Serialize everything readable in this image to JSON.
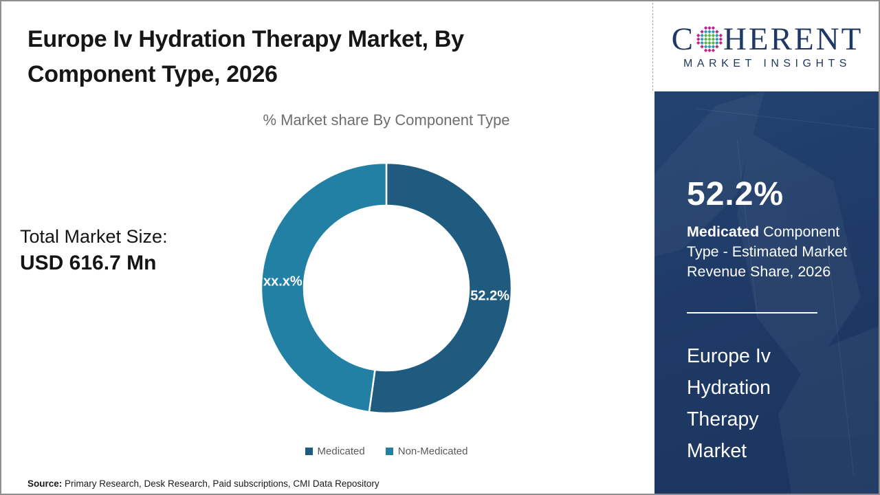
{
  "header": {
    "title": "Europe Iv Hydration Therapy Market, By Component Type, 2026"
  },
  "logo": {
    "brand_first_letter": "C",
    "brand_rest": "HERENT",
    "tagline": "MARKET INSIGHTS",
    "brand_color": "#1f3864",
    "globe_dot_colors": {
      "green": "#5bb54b",
      "teal": "#2e9ab4",
      "magenta": "#c02488"
    }
  },
  "chart_data": {
    "type": "pie",
    "donut": true,
    "title": "% Market share By Component Type",
    "legend_position": "bottom",
    "slices": [
      {
        "name": "Medicated",
        "value": 52.2,
        "label": "52.2%",
        "color": "#1f5b7e"
      },
      {
        "name": "Non-Medicated",
        "value": 47.8,
        "label": "xx.x%",
        "color": "#2180a3"
      }
    ]
  },
  "left_panel": {
    "total_label": "Total Market Size:",
    "total_value": "USD 616.7 Mn"
  },
  "sidebar": {
    "bg_color": "#1f3a66",
    "stat_value": "52.2%",
    "stat_bold": "Medicated",
    "stat_rest": " Component Type - Estimated Market Revenue Share, 2026",
    "market_name": "Europe Iv Hydration Therapy Market"
  },
  "footer": {
    "source_label": "Source:",
    "source_text": " Primary Research, Desk Research, Paid subscriptions, CMI Data Repository"
  }
}
